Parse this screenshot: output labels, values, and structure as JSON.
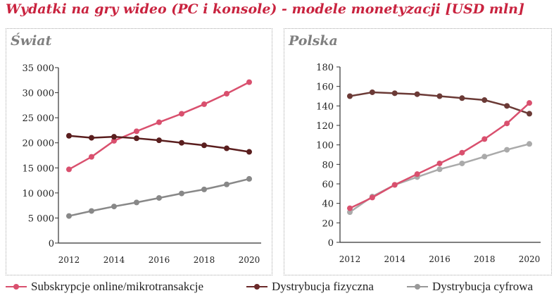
{
  "title": "Wydatki na gry wideo (PC i konsole) - modele monetyzacji [USD mln]",
  "legend": [
    {
      "label": "Subskrypcje online/mikrotransakcje",
      "color": "#d9506e"
    },
    {
      "label": "Dystrybucja fizyczna",
      "color": "#6b2a2a"
    },
    {
      "label": "Dystrybucja cyfrowa",
      "color": "#999999"
    }
  ],
  "chart_data": [
    {
      "type": "line",
      "title": "Świat",
      "x": [
        2012,
        2013,
        2014,
        2015,
        2016,
        2017,
        2018,
        2019,
        2020
      ],
      "xticks": [
        "2012",
        "2014",
        "2016",
        "2018",
        "2020"
      ],
      "ylim": [
        0,
        35000
      ],
      "yticks": [
        "0",
        "5 000",
        "10 000",
        "15 000",
        "20 000",
        "25 000",
        "30 000",
        "35 000"
      ],
      "ytick_values": [
        0,
        5000,
        10000,
        15000,
        20000,
        25000,
        30000,
        35000
      ],
      "series": [
        {
          "name": "Subskrypcje online/mikrotransakcje",
          "color": "#d9506e",
          "values": [
            14700,
            17200,
            20400,
            22300,
            24100,
            25800,
            27700,
            29800,
            32100
          ]
        },
        {
          "name": "Dystrybucja fizyczna",
          "color": "#5a1e1e",
          "values": [
            21400,
            21000,
            21200,
            20900,
            20500,
            20000,
            19500,
            18900,
            18200
          ]
        },
        {
          "name": "Dystrybucja cyfrowa",
          "color": "#888888",
          "values": [
            5400,
            6400,
            7300,
            8100,
            9000,
            9900,
            10700,
            11700,
            12800
          ]
        }
      ]
    },
    {
      "type": "line",
      "title": "Polska",
      "x": [
        2012,
        2013,
        2014,
        2015,
        2016,
        2017,
        2018,
        2019,
        2020
      ],
      "xticks": [
        "2012",
        "2014",
        "2016",
        "2018",
        "2020"
      ],
      "ylim": [
        0,
        180
      ],
      "yticks": [
        "0",
        "20",
        "40",
        "60",
        "80",
        "100",
        "120",
        "140",
        "160",
        "180"
      ],
      "ytick_values": [
        0,
        20,
        40,
        60,
        80,
        100,
        120,
        140,
        160,
        180
      ],
      "series": [
        {
          "name": "Dystrybucja cyfrowa",
          "color": "#aaaaaa",
          "values": [
            31,
            47,
            59,
            67,
            75,
            81,
            88,
            95,
            101
          ]
        },
        {
          "name": "Dystrybucja fizyczna",
          "color": "#6b3a36",
          "values": [
            150,
            154,
            153,
            152,
            150,
            148,
            146,
            140,
            132
          ]
        },
        {
          "name": "Subskrypcje online/mikrotransakcje",
          "color": "#d9506e",
          "values": [
            35,
            46,
            59,
            70,
            81,
            92,
            106,
            122,
            143
          ]
        }
      ]
    }
  ]
}
